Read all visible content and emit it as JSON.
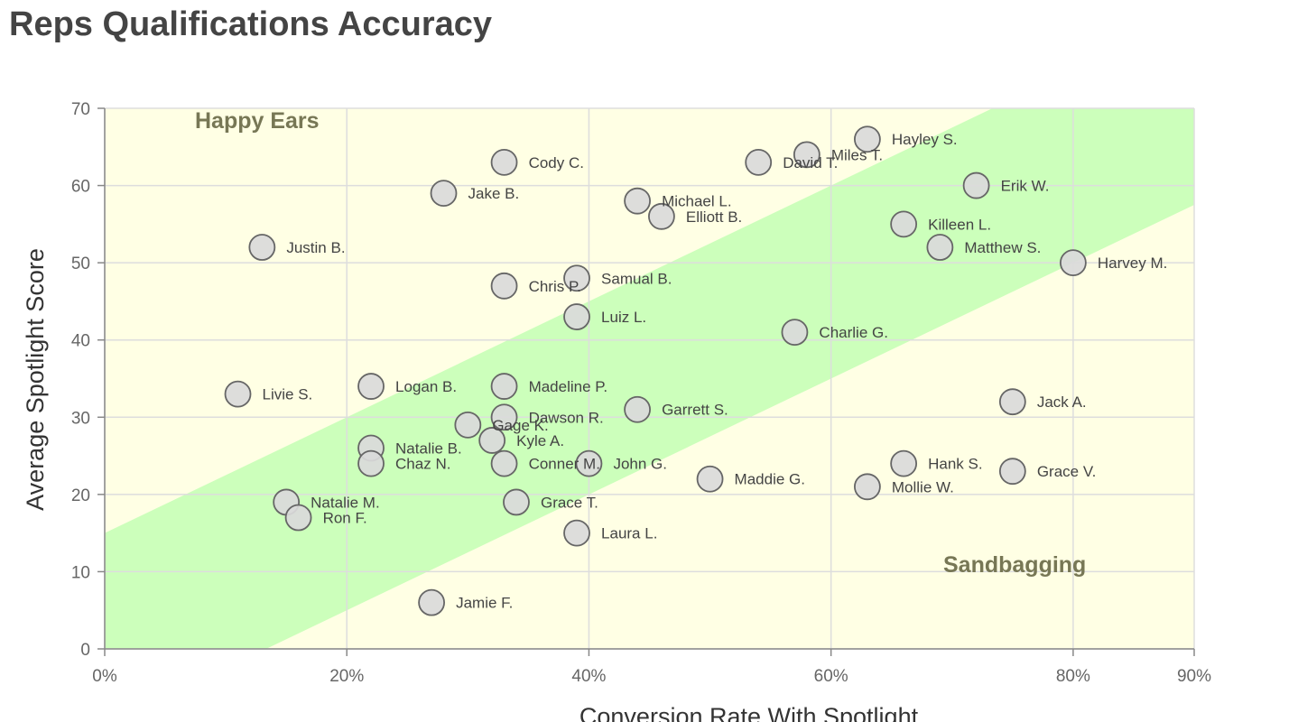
{
  "title": "Reps Qualifications Accuracy",
  "chart_data": {
    "type": "scatter",
    "title": "Reps Qualifications Accuracy",
    "xlabel": "Conversion Rate With Spotlight",
    "ylabel": "Average Spotlight Score",
    "xlim": [
      0,
      90
    ],
    "ylim": [
      0,
      70
    ],
    "x_ticks": [
      "0%",
      "20%",
      "40%",
      "60%",
      "80%",
      "90%"
    ],
    "x_tick_values": [
      0,
      20,
      40,
      60,
      80,
      90
    ],
    "y_ticks": [
      "0",
      "10",
      "20",
      "30",
      "40",
      "50",
      "60",
      "70"
    ],
    "y_tick_values": [
      0,
      10,
      20,
      30,
      40,
      50,
      60,
      70
    ],
    "x_unit": "%",
    "grid": true,
    "band": {
      "lower_y_at_x0": -10,
      "upper_y_at_x0": 15,
      "slope": 0.75,
      "color": "#ccffbb"
    },
    "background_color": "#ffffe4",
    "regions": [
      {
        "label": "Happy Ears",
        "position": "top-left"
      },
      {
        "label": "Sandbagging",
        "position": "bottom-right"
      }
    ],
    "points": [
      {
        "name": "Hayley S.",
        "x": 63,
        "y": 66
      },
      {
        "name": "Miles T.",
        "x": 58,
        "y": 64
      },
      {
        "name": "David T.",
        "x": 54,
        "y": 63
      },
      {
        "name": "Cody C.",
        "x": 33,
        "y": 63
      },
      {
        "name": "Erik W.",
        "x": 72,
        "y": 60
      },
      {
        "name": "Jake B.",
        "x": 28,
        "y": 59
      },
      {
        "name": "Michael L.",
        "x": 44,
        "y": 58
      },
      {
        "name": "Elliott B.",
        "x": 46,
        "y": 56
      },
      {
        "name": "Killeen L.",
        "x": 66,
        "y": 55
      },
      {
        "name": "Justin B.",
        "x": 13,
        "y": 52
      },
      {
        "name": "Matthew S.",
        "x": 69,
        "y": 52
      },
      {
        "name": "Harvey M.",
        "x": 80,
        "y": 50
      },
      {
        "name": "Samual B.",
        "x": 39,
        "y": 48
      },
      {
        "name": "Chris P.",
        "x": 33,
        "y": 47
      },
      {
        "name": "Luiz L.",
        "x": 39,
        "y": 43
      },
      {
        "name": "Charlie G.",
        "x": 57,
        "y": 41
      },
      {
        "name": "Logan B.",
        "x": 22,
        "y": 34
      },
      {
        "name": "Madeline P.",
        "x": 33,
        "y": 34
      },
      {
        "name": "Livie S.",
        "x": 11,
        "y": 33
      },
      {
        "name": "Jack A.",
        "x": 75,
        "y": 32
      },
      {
        "name": "Garrett S.",
        "x": 44,
        "y": 31
      },
      {
        "name": "Dawson R.",
        "x": 33,
        "y": 30
      },
      {
        "name": "Gage K.",
        "x": 30,
        "y": 29
      },
      {
        "name": "Kyle A.",
        "x": 32,
        "y": 27
      },
      {
        "name": "Natalie B.",
        "x": 22,
        "y": 26
      },
      {
        "name": "Chaz N.",
        "x": 22,
        "y": 24
      },
      {
        "name": "Conner M.",
        "x": 33,
        "y": 24
      },
      {
        "name": "John G.",
        "x": 40,
        "y": 24
      },
      {
        "name": "Hank S.",
        "x": 66,
        "y": 24
      },
      {
        "name": "Grace V.",
        "x": 75,
        "y": 23
      },
      {
        "name": "Maddie G.",
        "x": 50,
        "y": 22
      },
      {
        "name": "Mollie W.",
        "x": 63,
        "y": 21
      },
      {
        "name": "Natalie M.",
        "x": 15,
        "y": 19
      },
      {
        "name": "Grace T.",
        "x": 34,
        "y": 19
      },
      {
        "name": "Ron F.",
        "x": 16,
        "y": 17
      },
      {
        "name": "Laura L.",
        "x": 39,
        "y": 15
      },
      {
        "name": "Jamie F.",
        "x": 27,
        "y": 6
      }
    ]
  }
}
